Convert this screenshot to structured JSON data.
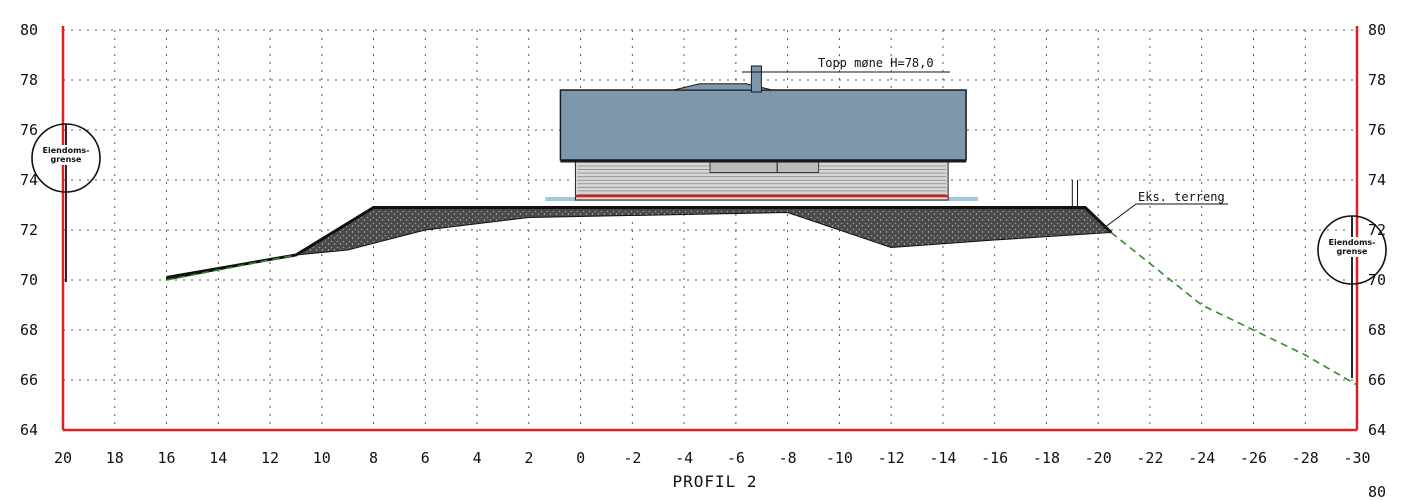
{
  "drawing": {
    "title": "PROFIL 2",
    "x_ticks": [
      "20",
      "18",
      "16",
      "14",
      "12",
      "10",
      "8",
      "6",
      "4",
      "2",
      "0",
      "-2",
      "-4",
      "-6",
      "-8",
      "-10",
      "-12",
      "-14",
      "-16",
      "-18",
      "-20",
      "-22",
      "-24",
      "-26",
      "-28",
      "-30"
    ],
    "y_ticks_left": [
      "80",
      "78",
      "76",
      "74",
      "72",
      "70",
      "68",
      "66",
      "64"
    ],
    "y_ticks_right": [
      "80",
      "78",
      "76",
      "74",
      "72",
      "70",
      "68",
      "66",
      "64"
    ],
    "corner_label": "80",
    "annotations": {
      "ridge": "Topp møne H=78,0",
      "terrain": "Eks. terreng"
    },
    "boundary_left": [
      "Eiendoms-",
      "grense"
    ],
    "boundary_right": [
      "Eiendoms-",
      "grense"
    ],
    "colors": {
      "frame": "#e02020",
      "grid": "#555555",
      "terrain_existing": "#2e8b2e",
      "fill": "#3a3a3a",
      "roof": "#7d97ad",
      "wall": "#d6d6d6",
      "foundation": "#d02020"
    }
  },
  "chart_data": {
    "type": "line",
    "title": "PROFIL 2",
    "xlim": [
      20,
      -30
    ],
    "ylim": [
      64,
      80
    ],
    "series": [
      {
        "points": [
          [
            16,
            70.1
          ],
          [
            11,
            71.0
          ],
          [
            8,
            72.9
          ],
          [
            -19.5,
            72.9
          ],
          [
            -20.5,
            71.9
          ]
        ]
      },
      {
        "points": [
          [
            16,
            70.0
          ],
          [
            11,
            71.0
          ],
          [
            9,
            71.2
          ],
          [
            6,
            72.0
          ],
          [
            2,
            72.5
          ],
          [
            -8,
            72.7
          ],
          [
            -12,
            71.3
          ],
          [
            -16,
            71.6
          ],
          [
            -20.5,
            71.9
          ]
        ]
      },
      {
        "points": [
          [
            16,
            70.0
          ],
          [
            11,
            71.0
          ]
        ]
      },
      {
        "points": [
          [
            -20.5,
            71.9
          ],
          [
            -24,
            69.0
          ],
          [
            -28,
            67.0
          ],
          [
            -30,
            65.8
          ]
        ]
      }
    ],
    "building": {
      "walls": [
        0.2,
        -14.2
      ],
      "base": 73.2,
      "eave": 74.8,
      "roof_top": 77.6,
      "ridge": 78.0
    }
  }
}
